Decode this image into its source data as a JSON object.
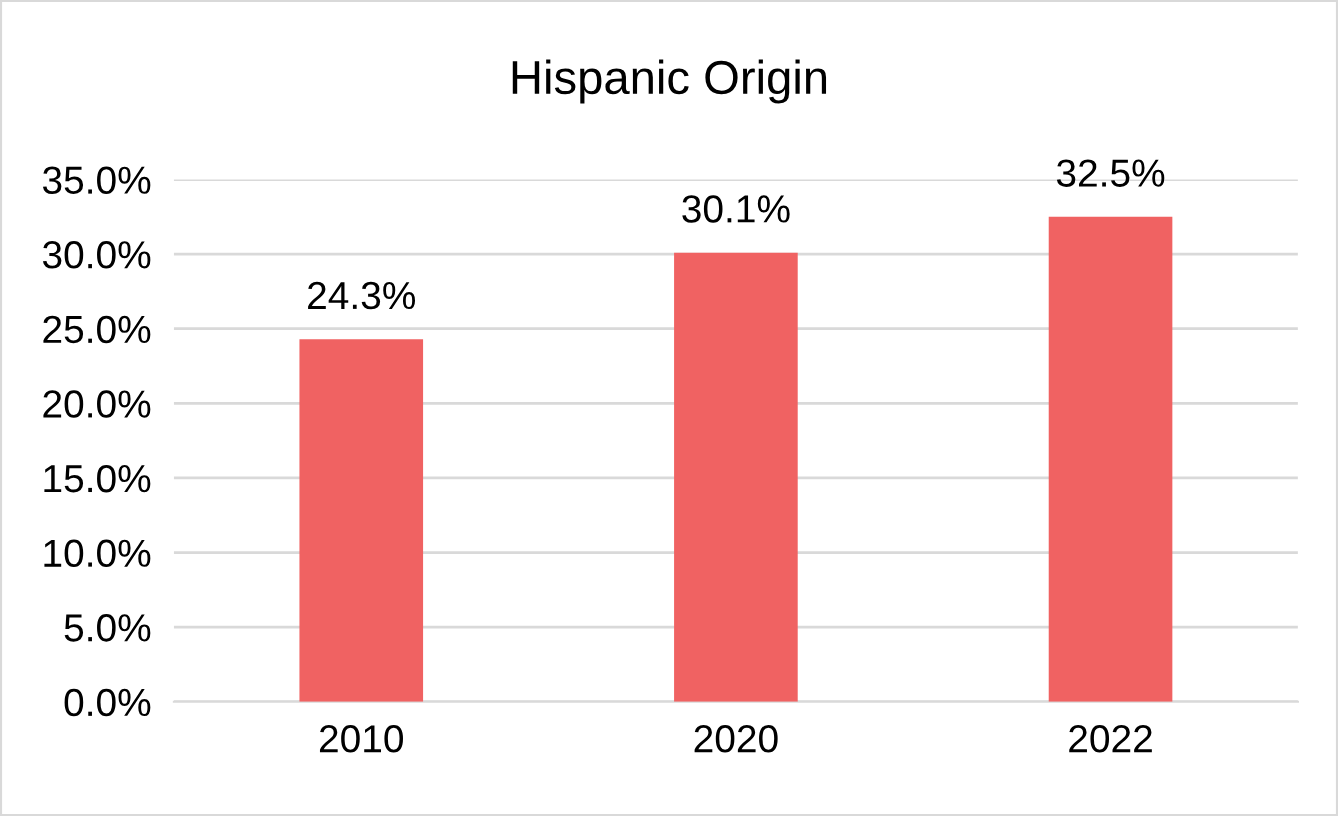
{
  "chart_data": {
    "type": "bar",
    "title": "Hispanic Origin",
    "categories": [
      "2010",
      "2020",
      "2022"
    ],
    "values": [
      24.3,
      30.1,
      32.5
    ],
    "value_labels": [
      "24.3%",
      "30.1%",
      "32.5%"
    ],
    "color": "#f06262",
    "ylim": [
      0,
      35
    ],
    "yticks": [
      {
        "value": 0,
        "label": "0.0%"
      },
      {
        "value": 5,
        "label": "5.0%"
      },
      {
        "value": 10,
        "label": "10.0%"
      },
      {
        "value": 15,
        "label": "15.0%"
      },
      {
        "value": 20,
        "label": "20.0%"
      },
      {
        "value": 25,
        "label": "25.0%"
      },
      {
        "value": 30,
        "label": "30.0%"
      },
      {
        "value": 35,
        "label": "35.0%"
      }
    ],
    "grid": "y"
  }
}
